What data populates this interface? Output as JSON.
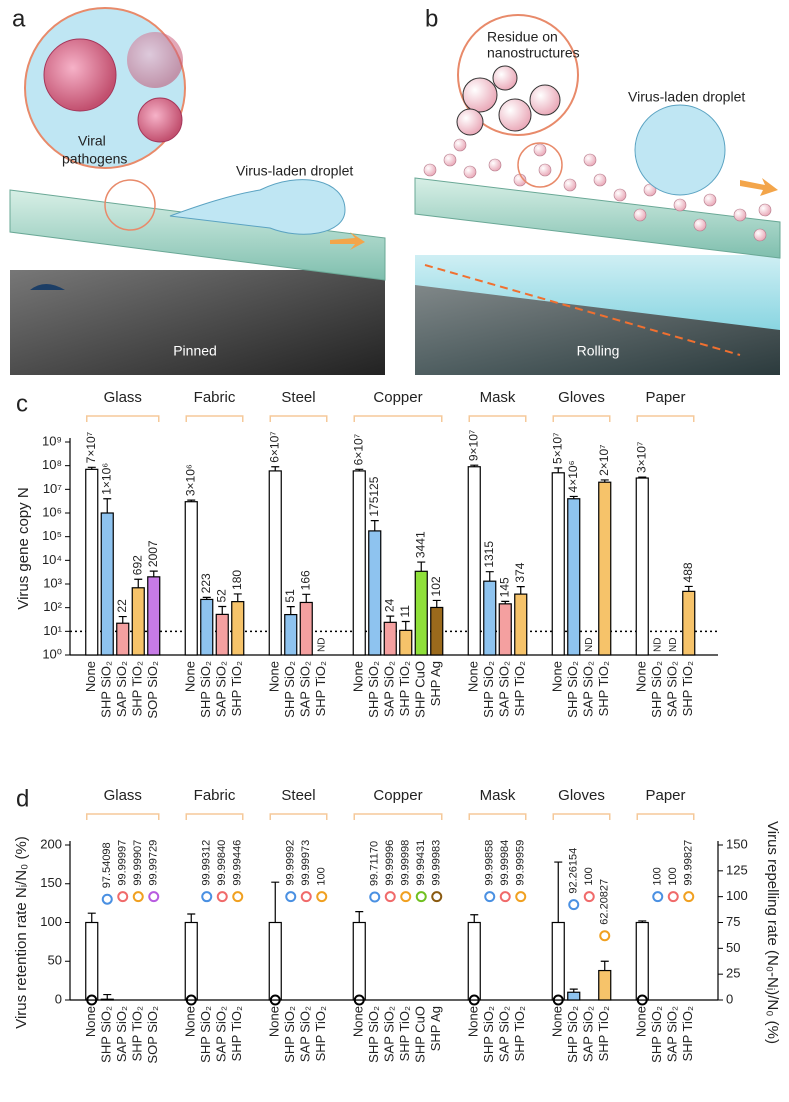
{
  "illustrations": {
    "a": {
      "label": "a",
      "pathogen_label": [
        "Viral",
        "pathogens"
      ],
      "droplet_label": "Virus-laden droplet",
      "state": "Pinned"
    },
    "b": {
      "label": "b",
      "residue_label": [
        "Residue on",
        "nanostructures"
      ],
      "droplet_label": "Virus-laden droplet",
      "state": "Rolling"
    }
  },
  "chart_data": [
    {
      "type": "bar",
      "panel_label": "c",
      "ylabel": "Virus gene copy N",
      "log": true,
      "ylim": [
        1,
        1000000000
      ],
      "yticks": [
        {
          "value": 1,
          "label": "10⁰"
        },
        {
          "value": 10,
          "label": "10¹"
        },
        {
          "value": 100,
          "label": "10²"
        },
        {
          "value": 1000,
          "label": "10³"
        },
        {
          "value": 10000,
          "label": "10⁴"
        },
        {
          "value": 100000,
          "label": "10⁵"
        },
        {
          "value": 1000000,
          "label": "10⁶"
        },
        {
          "value": 10000000,
          "label": "10⁷"
        },
        {
          "value": 100000000,
          "label": "10⁸"
        },
        {
          "value": 1000000000,
          "label": "10⁹"
        }
      ],
      "threshold": 10,
      "groups": [
        {
          "name": "Glass",
          "categories": [
            "None",
            "SHP SiO₂",
            "SAP SiO₂",
            "SHP TiO₂",
            "SOP SiO₂"
          ],
          "colors": [
            "#ffffff",
            "#8ec3ef",
            "#f4a0a0",
            "#f6c36a",
            "#c77be6"
          ],
          "values": [
            70000000,
            1000000,
            22,
            692,
            2007
          ],
          "value_labels": [
            "7×10⁷",
            "1×10⁶",
            null,
            null,
            null
          ],
          "errors": [
            15000000,
            3000000,
            20,
            900,
            1500
          ]
        },
        {
          "name": "Fabric",
          "categories": [
            "None",
            "SHP SiO₂",
            "SAP SiO₂",
            "SHP TiO₂"
          ],
          "colors": [
            "#ffffff",
            "#8ec3ef",
            "#f4a0a0",
            "#f6c36a"
          ],
          "values": [
            3000000,
            223,
            52,
            180
          ],
          "value_labels": [
            "3×10⁶",
            null,
            null,
            null
          ],
          "errors": [
            500000,
            50,
            60,
            200
          ]
        },
        {
          "name": "Steel",
          "categories": [
            "None",
            "SHP SiO₂",
            "SAP SiO₂",
            "SHP TiO₂"
          ],
          "colors": [
            "#ffffff",
            "#8ec3ef",
            "#f4a0a0",
            "#f6c36a"
          ],
          "values": [
            60000000,
            51,
            166,
            null
          ],
          "value_labels": [
            "6×10⁷",
            null,
            null,
            "ND"
          ],
          "errors": [
            30000000,
            60,
            200,
            null
          ]
        },
        {
          "name": "Copper",
          "categories": [
            "None",
            "SHP SiO₂",
            "SAP SiO₂",
            "SHP TiO₂",
            "SHP CuO",
            "SHP Ag"
          ],
          "colors": [
            "#ffffff",
            "#8ec3ef",
            "#f4a0a0",
            "#f6c36a",
            "#8fe03a",
            "#9b6a1c"
          ],
          "values": [
            60000000,
            175125,
            24,
            11,
            3441,
            102
          ],
          "value_labels": [
            "6×10⁷",
            null,
            null,
            null,
            null,
            null
          ],
          "errors": [
            10000000,
            300000,
            20,
            15,
            5000,
            100
          ]
        },
        {
          "name": "Mask",
          "categories": [
            "None",
            "SHP SiO₂",
            "SAP SiO₂",
            "SHP TiO₂"
          ],
          "colors": [
            "#ffffff",
            "#8ec3ef",
            "#f4a0a0",
            "#f6c36a"
          ],
          "values": [
            90000000,
            1315,
            145,
            374
          ],
          "value_labels": [
            "9×10⁷",
            null,
            null,
            null
          ],
          "errors": [
            15000000,
            2000,
            40,
            400
          ]
        },
        {
          "name": "Gloves",
          "categories": [
            "None",
            "SHP SiO₂",
            "SAP SiO₂",
            "SHP TiO₂"
          ],
          "colors": [
            "#ffffff",
            "#8ec3ef",
            "#f4a0a0",
            "#f6c36a"
          ],
          "values": [
            50000000,
            4000000,
            null,
            20000000
          ],
          "value_labels": [
            "5×10⁷",
            "4×10⁶",
            "ND",
            "2×10⁷"
          ],
          "errors": [
            30000000,
            1000000,
            null,
            5000000
          ]
        },
        {
          "name": "Paper",
          "categories": [
            "None",
            "SHP SiO₂",
            "SAP SiO₂",
            "SHP TiO₂"
          ],
          "colors": [
            "#ffffff",
            "#8ec3ef",
            "#f4a0a0",
            "#f6c36a"
          ],
          "values": [
            30000000,
            null,
            null,
            488
          ],
          "value_labels": [
            "3×10⁷",
            "ND",
            "ND",
            null
          ],
          "errors": [
            3000000,
            null,
            null,
            300
          ]
        }
      ]
    },
    {
      "type": "bar_scatter",
      "panel_label": "d",
      "ylabel": "Virus retention rate Nᵢ/N₀ (%)",
      "y2label": "Virus repelling  rate (N₀-Nᵢ)/N₀ (%)",
      "ylim": [
        0,
        200
      ],
      "yticks": [
        0,
        50,
        100,
        150,
        200
      ],
      "y2lim": [
        0,
        150
      ],
      "y2ticks": [
        0,
        25,
        50,
        75,
        100,
        125,
        150
      ],
      "groups": [
        {
          "name": "Glass",
          "categories": [
            "None",
            "SHP SiO₂",
            "SAP SiO₂",
            "SHP TiO₂",
            "SOP SiO₂"
          ],
          "colors": [
            "#ffffff",
            "#8ec3ef",
            "#f4a0a0",
            "#f6c36a",
            "#c77be6"
          ],
          "marker_colors": [
            "#000000",
            "#4a90e2",
            "#f06a6a",
            "#f0a020",
            "#b85be0"
          ],
          "retention": [
            100,
            1,
            0,
            0,
            0
          ],
          "retention_errors": [
            12,
            6,
            null,
            null,
            null
          ],
          "repelling": [
            0,
            97.54098,
            99.99997,
            99.99907,
            99.99729
          ],
          "repelling_labels": [
            null,
            "97.54098",
            "99.99997",
            "99.99907",
            "99.99729"
          ]
        },
        {
          "name": "Fabric",
          "categories": [
            "None",
            "SHP SiO₂",
            "SAP SiO₂",
            "SHP TiO₂"
          ],
          "colors": [
            "#ffffff",
            "#8ec3ef",
            "#f4a0a0",
            "#f6c36a"
          ],
          "marker_colors": [
            "#000000",
            "#4a90e2",
            "#f06a6a",
            "#f0a020"
          ],
          "retention": [
            100,
            0,
            0,
            0
          ],
          "retention_errors": [
            11,
            null,
            null,
            null
          ],
          "repelling": [
            0,
            99.99312,
            99.9984,
            99.99446
          ],
          "repelling_labels": [
            null,
            "99.99312",
            "99.99840",
            "99.99446"
          ]
        },
        {
          "name": "Steel",
          "categories": [
            "None",
            "SHP SiO₂",
            "SAP SiO₂",
            "SHP TiO₂"
          ],
          "colors": [
            "#ffffff",
            "#8ec3ef",
            "#f4a0a0",
            "#f6c36a"
          ],
          "marker_colors": [
            "#000000",
            "#4a90e2",
            "#f06a6a",
            "#f0a020"
          ],
          "retention": [
            100,
            0,
            0,
            0
          ],
          "retention_errors": [
            52,
            null,
            null,
            null
          ],
          "repelling": [
            0,
            99.99992,
            99.99973,
            100
          ],
          "repelling_labels": [
            null,
            "99.99992",
            "99.99973",
            null
          ]
        },
        {
          "name": "Copper",
          "categories": [
            "None",
            "SHP SiO₂",
            "SAP SiO₂",
            "SHP TiO₂",
            "SHP CuO",
            "SHP Ag"
          ],
          "colors": [
            "#ffffff",
            "#8ec3ef",
            "#f4a0a0",
            "#f6c36a",
            "#8fe03a",
            "#9b6a1c"
          ],
          "marker_colors": [
            "#000000",
            "#4a90e2",
            "#f06a6a",
            "#f0a020",
            "#70c020",
            "#8a5a10"
          ],
          "retention": [
            100,
            0,
            0,
            0,
            0,
            0
          ],
          "retention_errors": [
            14,
            null,
            null,
            null,
            null,
            null
          ],
          "repelling": [
            0,
            99.7117,
            99.99996,
            99.99998,
            99.99431,
            99.99983
          ],
          "repelling_labels": [
            null,
            "99.71170",
            "99.99996",
            "99.99998",
            "99.99431",
            "99.99983"
          ]
        },
        {
          "name": "Mask",
          "categories": [
            "None",
            "SHP SiO₂",
            "SAP SiO₂",
            "SHP TiO₂"
          ],
          "colors": [
            "#ffffff",
            "#8ec3ef",
            "#f4a0a0",
            "#f6c36a"
          ],
          "marker_colors": [
            "#000000",
            "#4a90e2",
            "#f06a6a",
            "#f0a020"
          ],
          "retention": [
            100,
            0,
            0,
            0
          ],
          "retention_errors": [
            10,
            null,
            null,
            null
          ],
          "repelling": [
            0,
            99.99858,
            99.99984,
            99.99959
          ],
          "repelling_labels": [
            null,
            "99.99858",
            "99.99984",
            "99.99959"
          ]
        },
        {
          "name": "Gloves",
          "categories": [
            "None",
            "SHP SiO₂",
            "SAP SiO₂",
            "SHP TiO₂"
          ],
          "colors": [
            "#ffffff",
            "#8ec3ef",
            "#f4a0a0",
            "#f6c36a"
          ],
          "marker_colors": [
            "#000000",
            "#4a90e2",
            "#f06a6a",
            "#f0a020"
          ],
          "retention": [
            100,
            10,
            0,
            38
          ],
          "retention_errors": [
            78,
            4,
            null,
            12
          ],
          "repelling": [
            0,
            92.26154,
            100,
            62.20827
          ],
          "repelling_labels": [
            null,
            "92.26154",
            null,
            "62.20827"
          ]
        },
        {
          "name": "Paper",
          "categories": [
            "None",
            "SHP SiO₂",
            "SAP SiO₂",
            "SHP TiO₂"
          ],
          "colors": [
            "#ffffff",
            "#8ec3ef",
            "#f4a0a0",
            "#f6c36a"
          ],
          "marker_colors": [
            "#000000",
            "#4a90e2",
            "#f06a6a",
            "#f0a020"
          ],
          "retention": [
            100,
            0,
            0,
            0
          ],
          "retention_errors": [
            2,
            null,
            null,
            null
          ],
          "repelling": [
            0,
            100,
            100,
            99.99827
          ],
          "repelling_labels": [
            null,
            null,
            null,
            "99.99827"
          ]
        }
      ]
    }
  ]
}
